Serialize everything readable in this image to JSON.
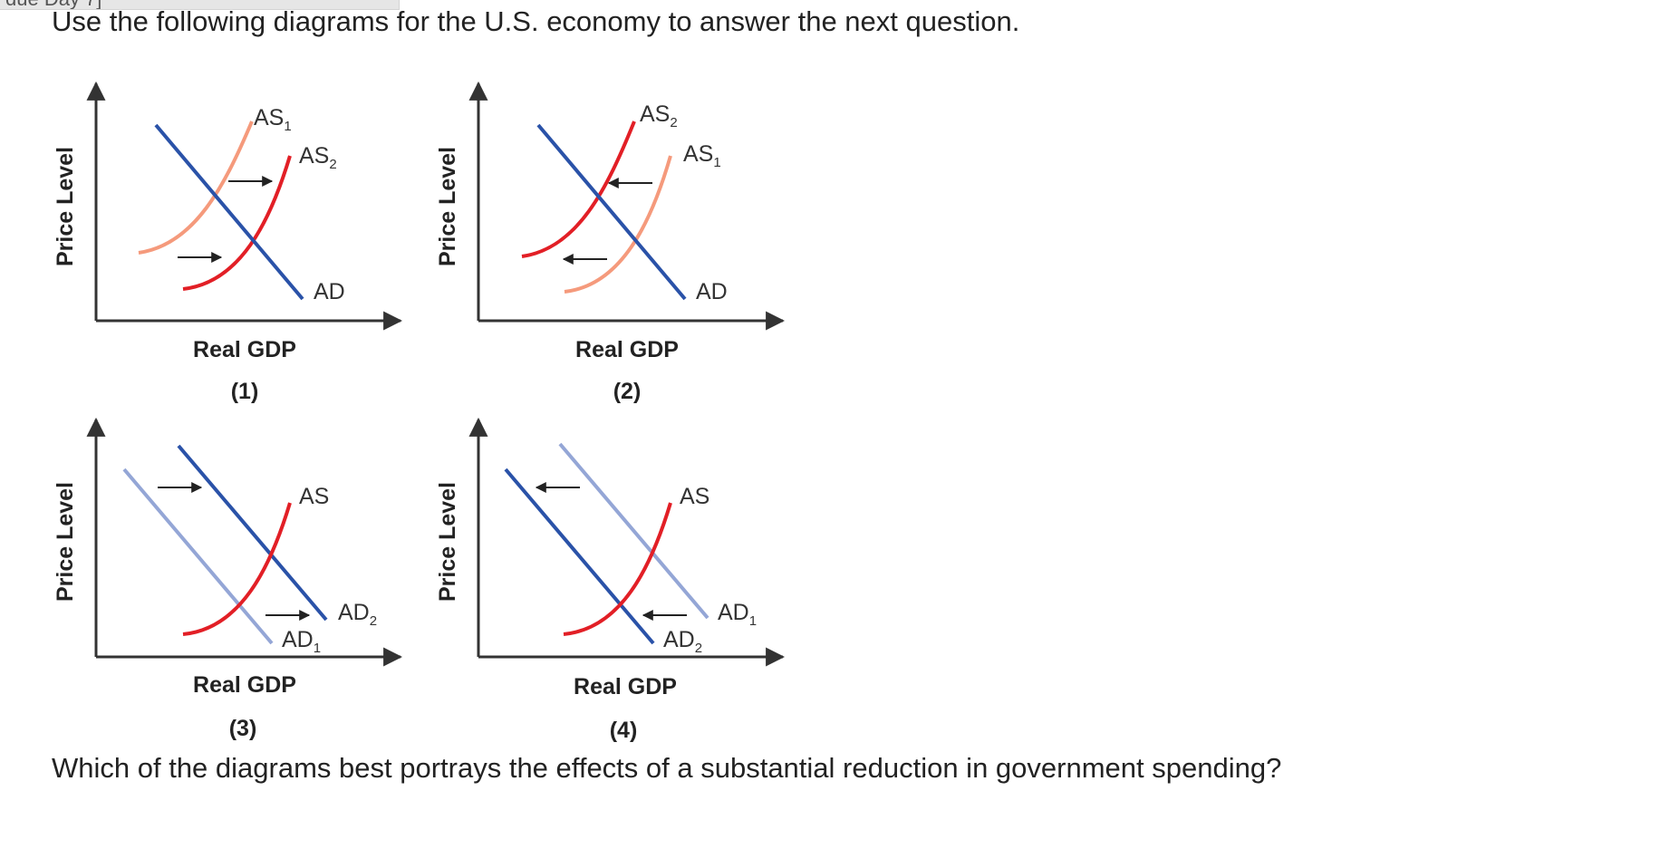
{
  "header_tab": {
    "label": "due Day 7]"
  },
  "intro": "Use the following diagrams for the U.S. economy to answer the next question.",
  "question": "Which of the diagrams best portrays the effects of a substantial reduction in government spending?",
  "colors": {
    "axis": "#333333",
    "demand": "#2a52a8",
    "demand_light": "#94a6d6",
    "supply": "#e21f26",
    "supply_light": "#f59a7c",
    "arrow": "#222222"
  },
  "diagrams": [
    {
      "number": "(1)",
      "xlabel": "Real GDP",
      "ylabel": "Price Level",
      "curves": {
        "as1": "AS",
        "as1_sub": "1",
        "as2": "AS",
        "as2_sub": "2",
        "ad": "AD"
      }
    },
    {
      "number": "(2)",
      "xlabel": "Real GDP",
      "ylabel": "Price Level",
      "curves": {
        "as2": "AS",
        "as2_sub": "2",
        "as1": "AS",
        "as1_sub": "1",
        "ad": "AD"
      }
    },
    {
      "number": "(3)",
      "xlabel": "Real GDP",
      "ylabel": "Price Level",
      "curves": {
        "as": "AS",
        "ad2": "AD",
        "ad2_sub": "2",
        "ad1": "AD",
        "ad1_sub": "1"
      }
    },
    {
      "number": "(4)",
      "xlabel": "Real GDP",
      "ylabel": "Price Level",
      "curves": {
        "as": "AS",
        "ad1": "AD",
        "ad1_sub": "1",
        "ad2": "AD",
        "ad2_sub": "2"
      }
    }
  ]
}
